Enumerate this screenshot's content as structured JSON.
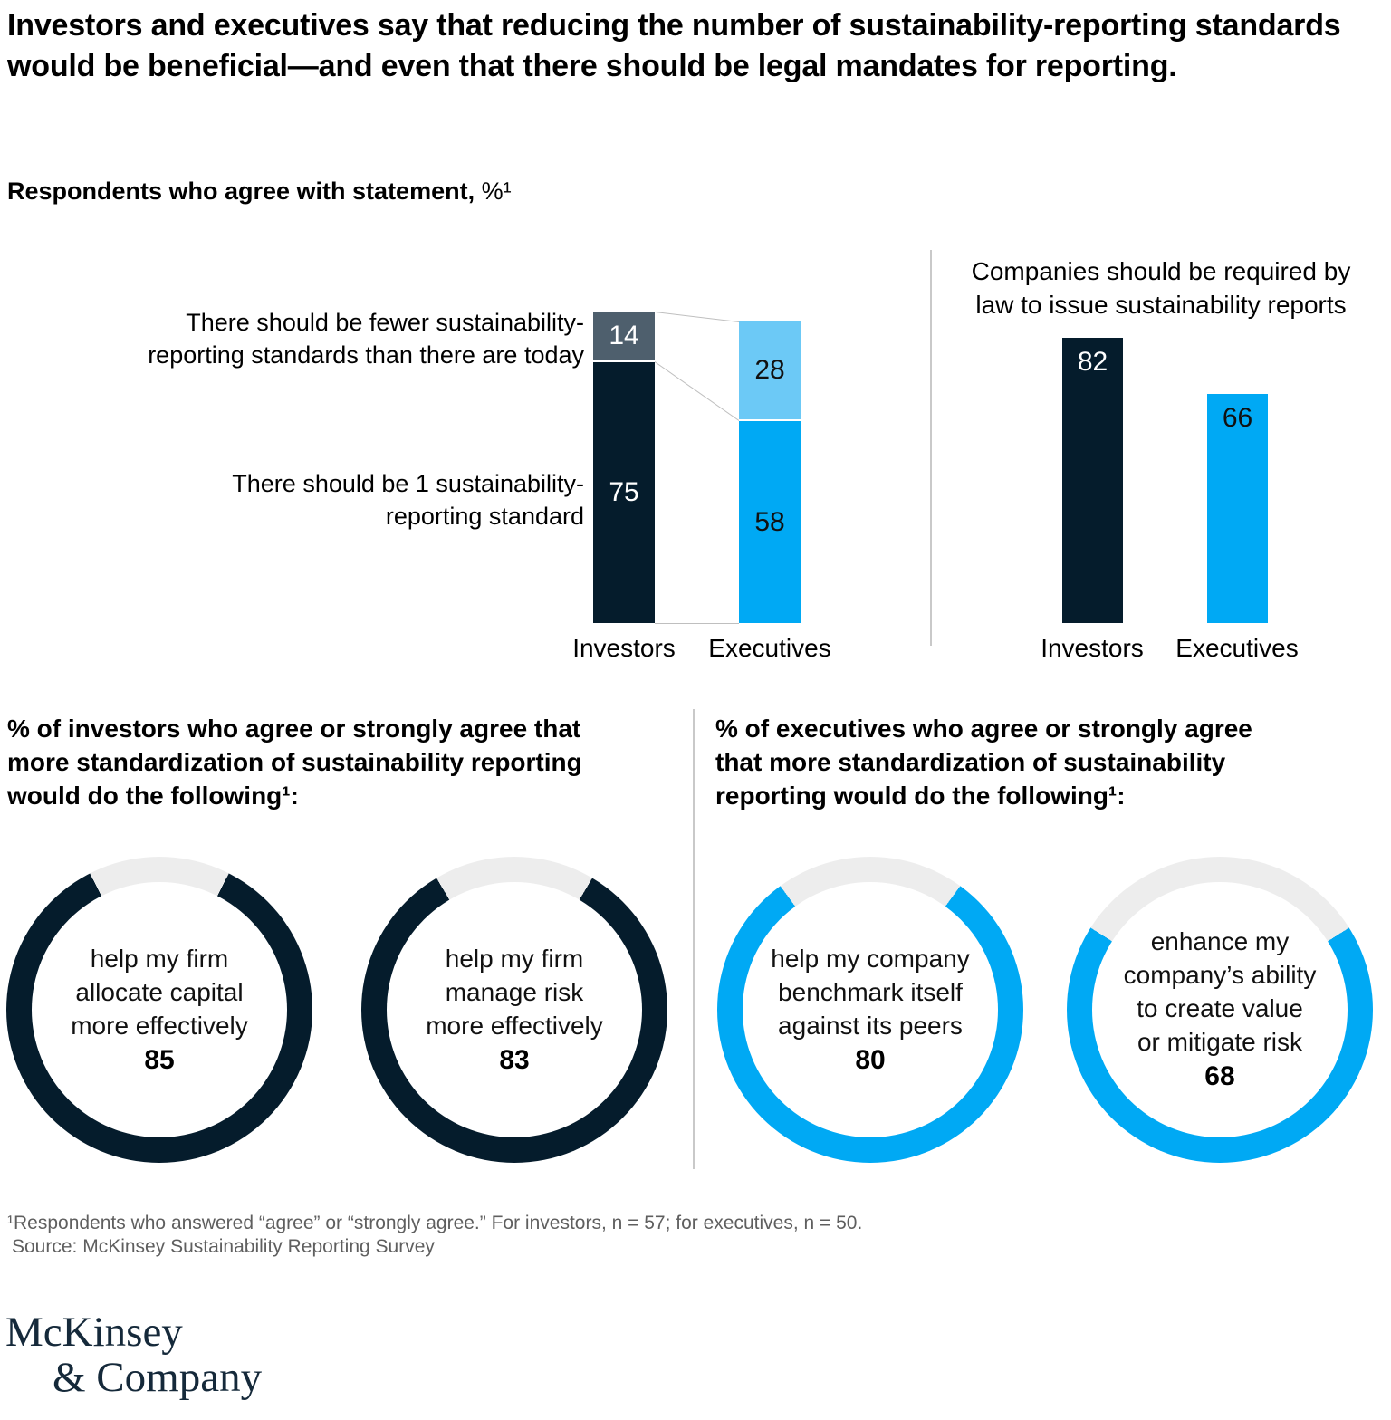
{
  "header": {
    "title": "Investors and executives say that reducing the number of sustainability-reporting standards would be beneficial—and even that there should be legal mandates for reporting.",
    "subtitle_bold": "Respondents who agree with statement,",
    "subtitle_unit": "%¹"
  },
  "colors": {
    "navy": "#051C2C",
    "slate": "#4E5F6D",
    "light_blue": "#6CC9F6",
    "bright_blue": "#00A9F4",
    "track": "#EDEDED",
    "connector": "#BFBFBF",
    "footnote_gray": "#5F5F5F",
    "logo_navy": "#15293A"
  },
  "left_chart": {
    "row_labels": [
      {
        "lines": [
          "There should be fewer sustainability-",
          "reporting standards than there are today"
        ]
      },
      {
        "lines": [
          "There should be 1 sustainability-",
          "reporting standard"
        ]
      }
    ]
  },
  "chart_data": [
    {
      "type": "bar",
      "subtype": "stacked-column",
      "title": "Respondents who agree with statement, %",
      "categories": [
        "Investors",
        "Executives"
      ],
      "series": [
        {
          "name": "There should be fewer sustainability-reporting standards than there are today",
          "values": [
            14,
            28
          ]
        },
        {
          "name": "There should be 1 sustainability-reporting standard",
          "values": [
            75,
            58
          ]
        }
      ],
      "legend_position": "left-row-labels",
      "grid": false
    },
    {
      "type": "bar",
      "title": "Companies should be required by law to issue sustainability reports",
      "categories": [
        "Investors",
        "Executives"
      ],
      "values": [
        82,
        66
      ],
      "grid": false
    },
    {
      "type": "donut",
      "group": "investors",
      "title": "% of investors who agree or strongly agree that more standardization of sustainability reporting would do the following",
      "color": "#051C2C",
      "items": [
        {
          "label": "help my firm allocate capital more effectively",
          "lines": [
            "help my firm",
            "allocate capital",
            "more effectively"
          ],
          "value": 85
        },
        {
          "label": "help my firm manage risk more effectively",
          "lines": [
            "help my firm",
            "manage risk",
            "more effectively"
          ],
          "value": 83
        }
      ]
    },
    {
      "type": "donut",
      "group": "executives",
      "title": "% of executives who agree or strongly agree that more standardization of sustainability reporting would do the following",
      "color": "#00A9F4",
      "items": [
        {
          "label": "help my company benchmark itself against its peers",
          "lines": [
            "help my company",
            "benchmark itself",
            "against its peers"
          ],
          "value": 80
        },
        {
          "label": "enhance my company’s ability to create value or mitigate risk",
          "lines": [
            "enhance my",
            "company’s ability",
            "to create value",
            "or mitigate risk"
          ],
          "value": 68
        }
      ]
    }
  ],
  "section_headers": {
    "investors": {
      "lines": [
        "% of investors who agree or strongly agree that",
        "more standardization of sustainability reporting",
        "would do the following¹:"
      ]
    },
    "executives": {
      "lines": [
        "% of executives who agree or strongly agree",
        "that more standardization of sustainability",
        "reporting would do the following¹:"
      ]
    }
  },
  "footnote": {
    "note": "¹Respondents who answered “agree” or “strongly agree.” For investors, n = 57; for executives, n = 50.",
    "source": "Source: McKinsey Sustainability Reporting Survey"
  },
  "logo": {
    "line1": "McKinsey",
    "line2": "& Company"
  }
}
